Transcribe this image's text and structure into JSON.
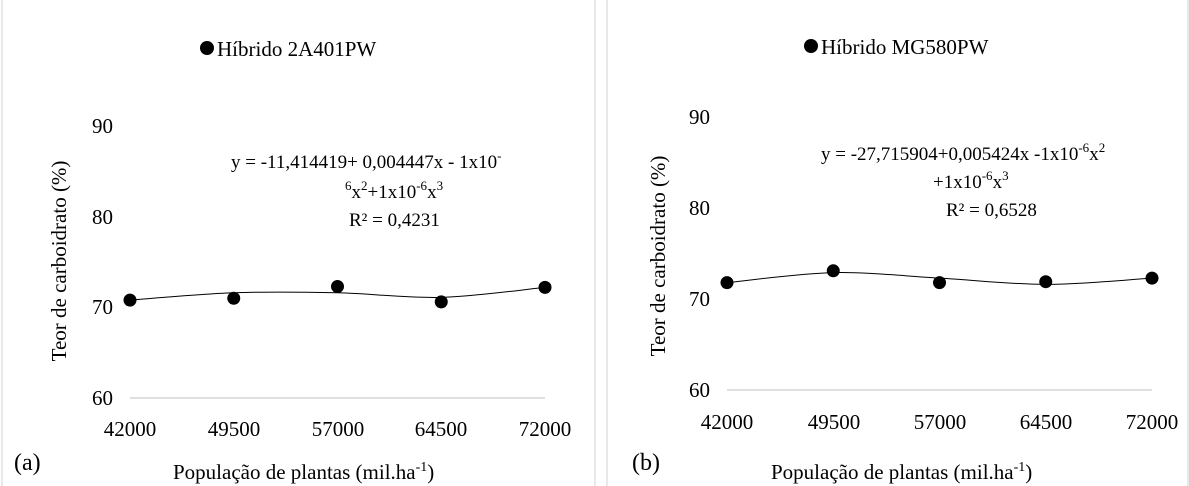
{
  "chart_data": [
    {
      "type": "scatter",
      "panel_label": "(a)",
      "title": "Híbrido 2A401PW",
      "legend_position": "top",
      "xlabel": "População de plantas (mil.ha",
      "xlabel_sup": "-1",
      "xlabel_end": ")",
      "ylabel": "Teor de carboidrato (%)",
      "ylim": [
        60,
        90
      ],
      "yticks": [
        "60",
        "70",
        "80",
        "90"
      ],
      "categories": [
        "42000",
        "49500",
        "57000",
        "64500",
        "72000"
      ],
      "points": [
        70.8,
        71.0,
        72.3,
        70.6,
        72.2
      ],
      "trendline": [
        70.8,
        71.6,
        71.6,
        71.1,
        72.2
      ],
      "equation": {
        "l1a": "y = -11,414419+ 0,004447x - 1x10",
        "l1b": "-",
        "l2a": "6",
        "l2b": "x",
        "l2c": "2",
        "l2d": "+1x10",
        "l2e": "-6",
        "l2f": "x",
        "l2g": "3",
        "r2": "R² = 0,4231"
      },
      "marker_color": "#000000",
      "grid": false
    },
    {
      "type": "scatter",
      "panel_label": "(b)",
      "title": "Híbrido MG580PW",
      "legend_position": "top",
      "xlabel": "População de plantas (mil.ha",
      "xlabel_sup": "-1",
      "xlabel_end": ")",
      "ylabel": "Teor de carboidrato (%)",
      "ylim": [
        60,
        90
      ],
      "yticks": [
        "60",
        "70",
        "80",
        "90"
      ],
      "categories": [
        "42000",
        "49500",
        "57000",
        "64500",
        "72000"
      ],
      "points": [
        71.8,
        73.1,
        71.8,
        71.9,
        72.3
      ],
      "trendline": [
        71.8,
        72.9,
        72.3,
        71.6,
        72.3
      ],
      "equation": {
        "l1a": "y = -27,715904+0,005424x -1x10",
        "l1b": "-6",
        "l1c": "x",
        "l1d": "2",
        "l2a": "+1x10",
        "l2b": "-6",
        "l2c": "x",
        "l2d": "3",
        "r2": "R² = 0,6528"
      },
      "marker_color": "#000000",
      "grid": false
    }
  ]
}
